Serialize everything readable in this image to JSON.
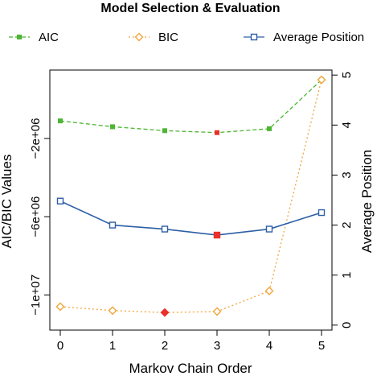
{
  "chart_data": {
    "type": "line",
    "title": "Model Selection & Evaluation",
    "xlabel": "Markov Chain Order",
    "ylabel_left": "AIC/BIC Values",
    "ylabel_right": "Average Position",
    "x": [
      0,
      1,
      2,
      3,
      4,
      5
    ],
    "x_ticks": [
      "0",
      "1",
      "2",
      "3",
      "4",
      "5"
    ],
    "xlim": [
      -0.2,
      5.2
    ],
    "left_axis": {
      "ylim": [
        -11800000,
        1500000
      ],
      "ticks": [
        -10000000,
        -6000000,
        -2000000
      ],
      "tick_labels": [
        "−1e+07",
        "−6e+06",
        "−2e+06"
      ]
    },
    "right_axis": {
      "ylim": [
        -0.1,
        5.1
      ],
      "ticks": [
        0,
        1,
        2,
        3,
        4,
        5
      ],
      "tick_labels": [
        "0",
        "1",
        "2",
        "3",
        "4",
        "5"
      ]
    },
    "series": [
      {
        "name": "AIC",
        "axis": "left",
        "values": [
          -1100000,
          -1400000,
          -1600000,
          -1700000,
          -1500000,
          1000000
        ],
        "color": "#4db533",
        "line_style": "dashed",
        "marker": "filled-square",
        "highlight_index": 3,
        "highlight_color": "#e8312b"
      },
      {
        "name": "BIC",
        "axis": "left",
        "values": [
          -10600000,
          -10800000,
          -10900000,
          -10850000,
          -9800000,
          1000000
        ],
        "color": "#f2a53a",
        "line_style": "dotted",
        "marker": "open-diamond",
        "highlight_index": 2,
        "highlight_color": "#e8312b"
      },
      {
        "name": "Average Position",
        "axis": "right",
        "values": [
          2.48,
          2.0,
          1.92,
          1.8,
          1.92,
          2.25
        ],
        "color": "#2d5fa6",
        "line_style": "solid",
        "marker": "open-square",
        "highlight_index": 3,
        "highlight_color": "#e8312b"
      }
    ],
    "legend": "top",
    "grid": false
  }
}
